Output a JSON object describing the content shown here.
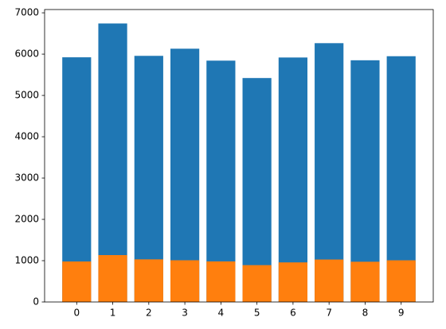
{
  "chart_data": {
    "type": "bar",
    "x": [
      0,
      1,
      2,
      3,
      4,
      5,
      6,
      7,
      8,
      9
    ],
    "bar_width": 0.8,
    "series": [
      {
        "color": "#1f77b4",
        "values": [
          5923,
          6742,
          5958,
          6131,
          5842,
          5421,
          5918,
          6265,
          5851,
          5949
        ]
      },
      {
        "color": "#ff7f0e",
        "values": [
          980,
          1135,
          1032,
          1010,
          982,
          892,
          958,
          1028,
          974,
          1009
        ]
      }
    ],
    "xlim": [
      -0.89,
      9.89
    ],
    "xticks": [
      0,
      1,
      2,
      3,
      4,
      5,
      6,
      7,
      8,
      9
    ],
    "ylim": [
      0,
      7079
    ],
    "yticks": [
      0,
      1000,
      2000,
      3000,
      4000,
      5000,
      6000,
      7000
    ],
    "grid": false
  }
}
